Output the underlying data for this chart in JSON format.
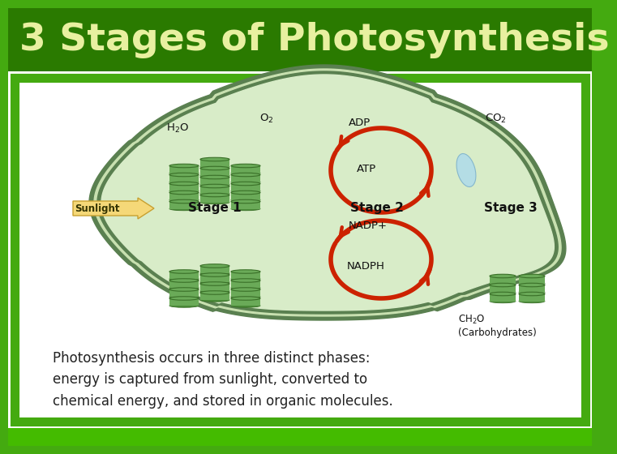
{
  "title": "3 Stages of Photosynthesis",
  "title_color": "#e8f0a0",
  "title_bg": "#2a7a00",
  "title_fontsize": 36,
  "body_bg": "#44aa10",
  "white_panel_bg": "#ffffff",
  "cell_bg": "#d0e8c0",
  "cell_border": "#6a9860",
  "cell_border2": "#8ab878",
  "description": "Photosynthesis occurs in three distinct phases:\nenergy is captured from sunlight, converted to\nchemical energy, and stored in organic molecules.",
  "desc_fontsize": 12,
  "stage_labels": [
    "Stage 1",
    "Stage 2",
    "Stage 3"
  ],
  "sunlight_label": "Sunlight",
  "bottom_bar_color": "#44bb00",
  "arrow_color": "#cc2200",
  "grana_color": "#6aaa58",
  "grana_dark": "#4a8a38",
  "grana_border": "#3a7028"
}
